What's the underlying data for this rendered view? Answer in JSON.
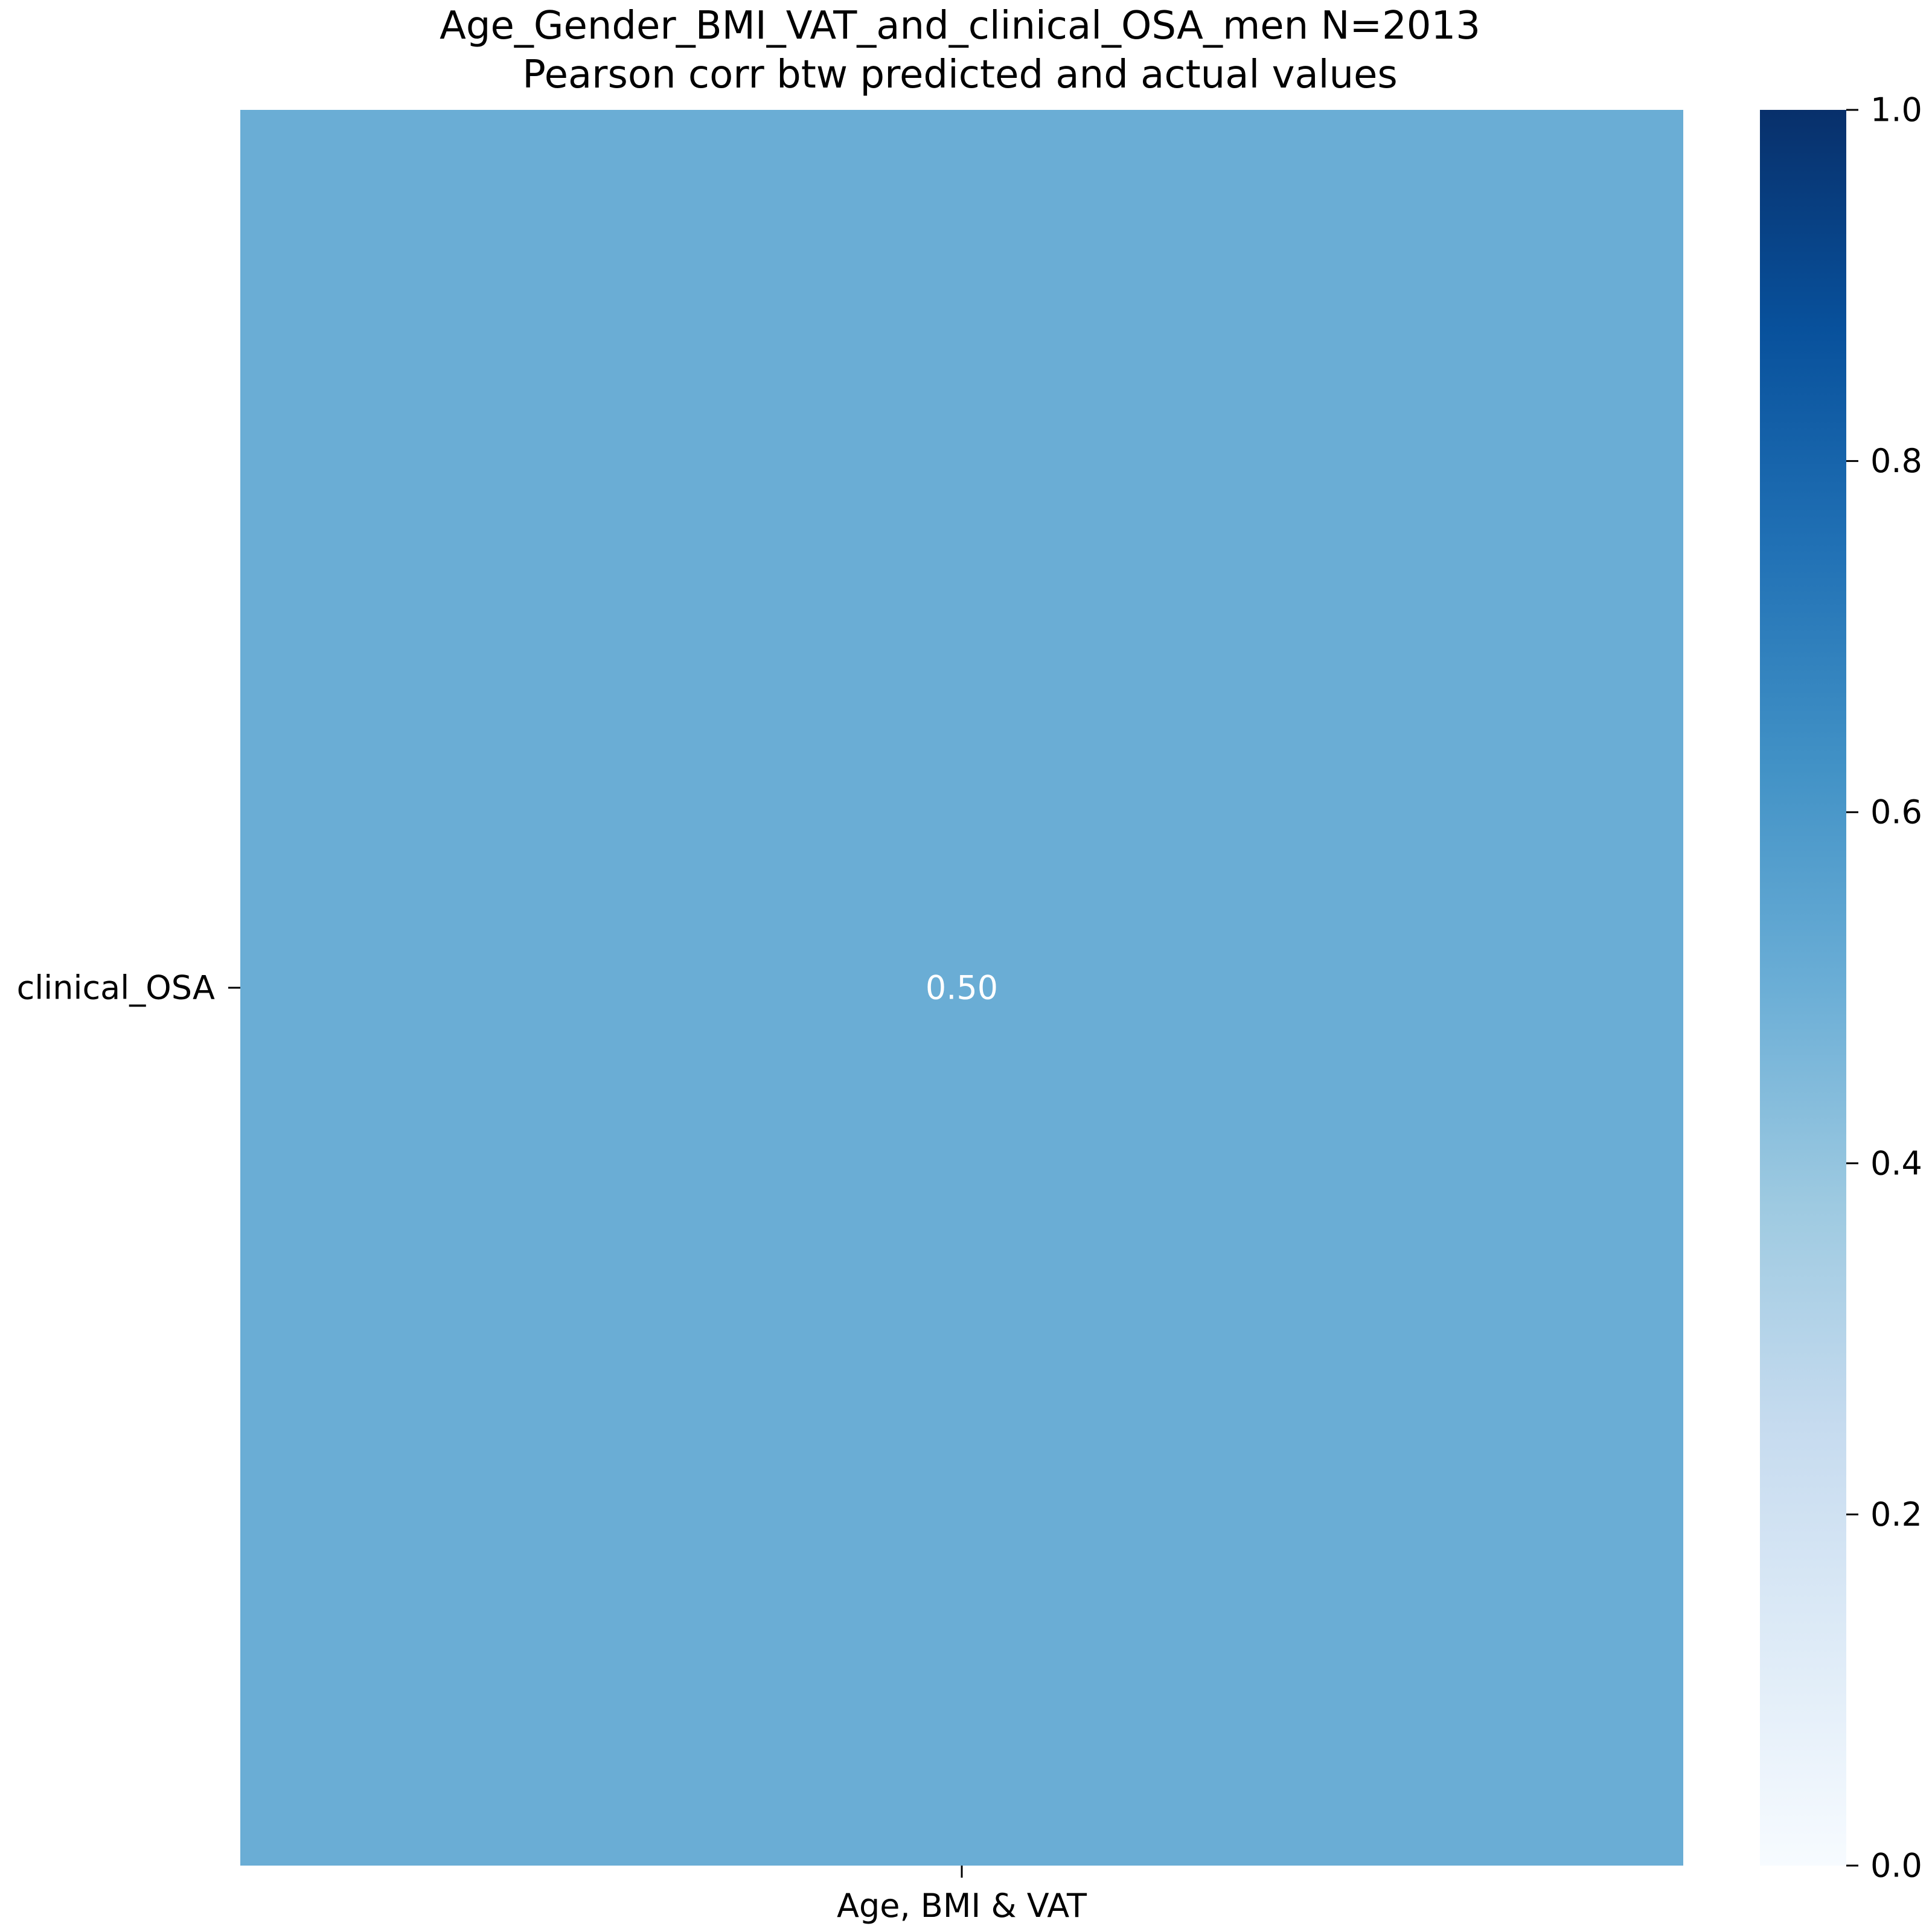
{
  "chart_data": {
    "type": "heatmap",
    "title": [
      "Age_Gender_BMI_VAT_and_clinical_OSA_men N=2013",
      "Pearson corr btw predicted and actual values"
    ],
    "x_categories": [
      "Age, BMI & VAT"
    ],
    "y_categories": [
      "clinical_OSA"
    ],
    "values": [
      [
        0.5
      ]
    ],
    "annotations": [
      [
        "0.50"
      ]
    ],
    "annotation_color": "#ffffff",
    "colormap": "Blues",
    "colorbar": {
      "range": [
        0,
        1.0
      ],
      "ticks": [
        0.0,
        0.2,
        0.4,
        0.6,
        0.8,
        1.0
      ],
      "tick_labels": [
        "0.0",
        "0.2",
        "0.4",
        "0.6",
        "0.8",
        "1.0"
      ]
    },
    "colors": {
      "cell": "#6aadd5",
      "text": "#000000"
    }
  }
}
